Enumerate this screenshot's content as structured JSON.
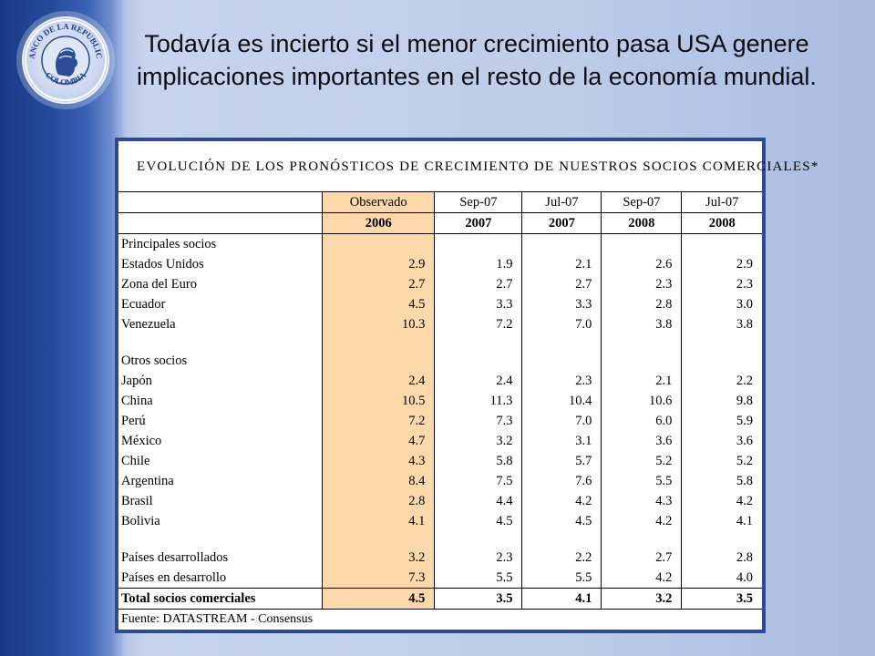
{
  "title": "Todavía es incierto si el menor crecimiento pasa USA genere implicaciones importantes en el resto de la economía mundial.",
  "logo": {
    "text_top": "BANCO DE LA REPUBLICA",
    "text_bottom": "COLOMBIA"
  },
  "table": {
    "heading": "EVOLUCIÓN DE LOS PRONÓSTICOS DE CRECIMIENTO DE NUESTROS SOCIOS COMERCIALES*",
    "col_headers": [
      "Observado",
      "Sep-07",
      "Jul-07",
      "Sep-07",
      "Jul-07"
    ],
    "col_years": [
      "2006",
      "2007",
      "2007",
      "2008",
      "2008"
    ],
    "section_principal": "Principales socios",
    "principal_rows": [
      {
        "name": "Estados Unidos",
        "values": [
          "2.9",
          "1.9",
          "2.1",
          "2.6",
          "2.9"
        ]
      },
      {
        "name": "Zona del Euro",
        "values": [
          "2.7",
          "2.7",
          "2.7",
          "2.3",
          "2.3"
        ]
      },
      {
        "name": "Ecuador",
        "values": [
          "4.5",
          "3.3",
          "3.3",
          "2.8",
          "3.0"
        ]
      },
      {
        "name": "Venezuela",
        "values": [
          "10.3",
          "7.2",
          "7.0",
          "3.8",
          "3.8"
        ]
      }
    ],
    "section_otros": "Otros socios",
    "otros_rows": [
      {
        "name": "Japón",
        "values": [
          "2.4",
          "2.4",
          "2.3",
          "2.1",
          "2.2"
        ]
      },
      {
        "name": "China",
        "values": [
          "10.5",
          "11.3",
          "10.4",
          "10.6",
          "9.8"
        ]
      },
      {
        "name": "Perú",
        "values": [
          "7.2",
          "7.3",
          "7.0",
          "6.0",
          "5.9"
        ]
      },
      {
        "name": "México",
        "values": [
          "4.7",
          "3.2",
          "3.1",
          "3.6",
          "3.6"
        ]
      },
      {
        "name": "Chile",
        "values": [
          "4.3",
          "5.8",
          "5.7",
          "5.2",
          "5.2"
        ]
      },
      {
        "name": "Argentina",
        "values": [
          "8.4",
          "7.5",
          "7.6",
          "5.5",
          "5.8"
        ]
      },
      {
        "name": "Brasil",
        "values": [
          "2.8",
          "4.4",
          "4.2",
          "4.3",
          "4.2"
        ]
      },
      {
        "name": "Bolivia",
        "values": [
          "4.1",
          "4.5",
          "4.5",
          "4.2",
          "4.1"
        ]
      }
    ],
    "group_rows": [
      {
        "name": "Países desarrollados",
        "values": [
          "3.2",
          "2.3",
          "2.2",
          "2.7",
          "2.8"
        ]
      },
      {
        "name": "Países en desarrollo",
        "values": [
          "7.3",
          "5.5",
          "5.5",
          "4.2",
          "4.0"
        ]
      }
    ],
    "total_row": {
      "name": "Total socios comerciales",
      "values": [
        "4.5",
        "3.5",
        "4.1",
        "3.2",
        "3.5"
      ]
    },
    "source": "Fuente: DATASTREAM - Consensus"
  }
}
